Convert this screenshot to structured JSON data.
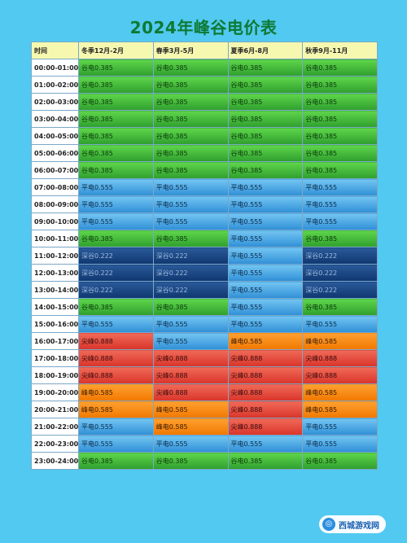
{
  "title": "2024年峰谷电价表",
  "headers": [
    "时间",
    "冬季12月-2月",
    "春季3月-5月",
    "夏季6月-8月",
    "秋季9月-11月"
  ],
  "rows": [
    {
      "time": "00:00-01:00",
      "cells": [
        {
          "text": "谷电0.385",
          "type": "valley"
        },
        {
          "text": "谷电0.385",
          "type": "valley"
        },
        {
          "text": "谷电0.385",
          "type": "valley"
        },
        {
          "text": "谷电0.385",
          "type": "valley"
        }
      ]
    },
    {
      "time": "01:00-02:00",
      "cells": [
        {
          "text": "谷电0.385",
          "type": "valley"
        },
        {
          "text": "谷电0.385",
          "type": "valley"
        },
        {
          "text": "谷电0.385",
          "type": "valley"
        },
        {
          "text": "谷电0.385",
          "type": "valley"
        }
      ]
    },
    {
      "time": "02:00-03:00",
      "cells": [
        {
          "text": "谷电0.385",
          "type": "valley"
        },
        {
          "text": "谷电0.385",
          "type": "valley"
        },
        {
          "text": "谷电0.385",
          "type": "valley"
        },
        {
          "text": "谷电0.385",
          "type": "valley"
        }
      ]
    },
    {
      "time": "03:00-04:00",
      "cells": [
        {
          "text": "谷电0.385",
          "type": "valley"
        },
        {
          "text": "谷电0.385",
          "type": "valley"
        },
        {
          "text": "谷电0.385",
          "type": "valley"
        },
        {
          "text": "谷电0.385",
          "type": "valley"
        }
      ]
    },
    {
      "time": "04:00-05:00",
      "cells": [
        {
          "text": "谷电0.385",
          "type": "valley"
        },
        {
          "text": "谷电0.385",
          "type": "valley"
        },
        {
          "text": "谷电0.385",
          "type": "valley"
        },
        {
          "text": "谷电0.385",
          "type": "valley"
        }
      ]
    },
    {
      "time": "05:00-06:00",
      "cells": [
        {
          "text": "谷电0.385",
          "type": "valley"
        },
        {
          "text": "谷电0.385",
          "type": "valley"
        },
        {
          "text": "谷电0.385",
          "type": "valley"
        },
        {
          "text": "谷电0.385",
          "type": "valley"
        }
      ]
    },
    {
      "time": "06:00-07:00",
      "cells": [
        {
          "text": "谷电0.385",
          "type": "valley"
        },
        {
          "text": "谷电0.385",
          "type": "valley"
        },
        {
          "text": "谷电0.385",
          "type": "valley"
        },
        {
          "text": "谷电0.385",
          "type": "valley"
        }
      ]
    },
    {
      "time": "07:00-08:00",
      "cells": [
        {
          "text": "平电0.555",
          "type": "flat"
        },
        {
          "text": "平电0.555",
          "type": "flat"
        },
        {
          "text": "平电0.555",
          "type": "flat"
        },
        {
          "text": "平电0.555",
          "type": "flat"
        }
      ]
    },
    {
      "time": "08:00-09:00",
      "cells": [
        {
          "text": "平电0.555",
          "type": "flat"
        },
        {
          "text": "平电0.555",
          "type": "flat"
        },
        {
          "text": "平电0.555",
          "type": "flat"
        },
        {
          "text": "平电0.555",
          "type": "flat"
        }
      ]
    },
    {
      "time": "09:00-10:00",
      "cells": [
        {
          "text": "平电0.555",
          "type": "flat"
        },
        {
          "text": "平电0.555",
          "type": "flat"
        },
        {
          "text": "平电0.555",
          "type": "flat"
        },
        {
          "text": "平电0.555",
          "type": "flat"
        }
      ]
    },
    {
      "time": "10:00-11:00",
      "cells": [
        {
          "text": "谷电0.385",
          "type": "valley"
        },
        {
          "text": "谷电0.385",
          "type": "valley"
        },
        {
          "text": "平电0.555",
          "type": "flat"
        },
        {
          "text": "谷电0.385",
          "type": "valley"
        }
      ]
    },
    {
      "time": "11:00-12:00",
      "cells": [
        {
          "text": "深谷0.222",
          "type": "deep"
        },
        {
          "text": "深谷0.222",
          "type": "deep"
        },
        {
          "text": "平电0.555",
          "type": "flat"
        },
        {
          "text": "深谷0.222",
          "type": "deep"
        }
      ]
    },
    {
      "time": "12:00-13:00",
      "cells": [
        {
          "text": "深谷0.222",
          "type": "deep"
        },
        {
          "text": "深谷0.222",
          "type": "deep"
        },
        {
          "text": "平电0.555",
          "type": "flat"
        },
        {
          "text": "深谷0.222",
          "type": "deep"
        }
      ]
    },
    {
      "time": "13:00-14:00",
      "cells": [
        {
          "text": "深谷0.222",
          "type": "deep"
        },
        {
          "text": "深谷0.222",
          "type": "deep"
        },
        {
          "text": "平电0.555",
          "type": "flat"
        },
        {
          "text": "深谷0.222",
          "type": "deep"
        }
      ]
    },
    {
      "time": "14:00-15:00",
      "cells": [
        {
          "text": "谷电0.385",
          "type": "valley"
        },
        {
          "text": "谷电0.385",
          "type": "valley"
        },
        {
          "text": "平电0.555",
          "type": "flat"
        },
        {
          "text": "谷电0.385",
          "type": "valley"
        }
      ]
    },
    {
      "time": "15:00-16:00",
      "cells": [
        {
          "text": "平电0.555",
          "type": "flat"
        },
        {
          "text": "平电0.555",
          "type": "flat"
        },
        {
          "text": "平电0.555",
          "type": "flat"
        },
        {
          "text": "平电0.555",
          "type": "flat"
        }
      ]
    },
    {
      "time": "16:00-17:00",
      "cells": [
        {
          "text": "尖峰0.888",
          "type": "sharp"
        },
        {
          "text": "平电0.555",
          "type": "flat"
        },
        {
          "text": "峰电0.585",
          "type": "peak"
        },
        {
          "text": "峰电0.585",
          "type": "peak"
        }
      ]
    },
    {
      "time": "17:00-18:00",
      "cells": [
        {
          "text": "尖峰0.888",
          "type": "sharp"
        },
        {
          "text": "尖峰0.888",
          "type": "sharp"
        },
        {
          "text": "尖峰0.888",
          "type": "sharp"
        },
        {
          "text": "尖峰0.888",
          "type": "sharp"
        }
      ]
    },
    {
      "time": "18:00-19:00",
      "cells": [
        {
          "text": "尖峰0.888",
          "type": "sharp"
        },
        {
          "text": "尖峰0.888",
          "type": "sharp"
        },
        {
          "text": "尖峰0.888",
          "type": "sharp"
        },
        {
          "text": "尖峰0.888",
          "type": "sharp"
        }
      ]
    },
    {
      "time": "19:00-20:00",
      "cells": [
        {
          "text": "峰电0.585",
          "type": "peak"
        },
        {
          "text": "尖峰0.888",
          "type": "sharp"
        },
        {
          "text": "尖峰0.888",
          "type": "sharp"
        },
        {
          "text": "峰电0.585",
          "type": "peak"
        }
      ]
    },
    {
      "time": "20:00-21:00",
      "cells": [
        {
          "text": "峰电0.585",
          "type": "peak"
        },
        {
          "text": "峰电0.585",
          "type": "peak"
        },
        {
          "text": "尖峰0.888",
          "type": "sharp"
        },
        {
          "text": "峰电0.585",
          "type": "peak"
        }
      ]
    },
    {
      "time": "21:00-22:00",
      "cells": [
        {
          "text": "平电0.555",
          "type": "flat"
        },
        {
          "text": "峰电0.585",
          "type": "peak"
        },
        {
          "text": "尖峰0.888",
          "type": "sharp"
        },
        {
          "text": "平电0.555",
          "type": "flat"
        }
      ]
    },
    {
      "time": "22:00-23:00",
      "cells": [
        {
          "text": "平电0.555",
          "type": "flat"
        },
        {
          "text": "平电0.555",
          "type": "flat"
        },
        {
          "text": "平电0.555",
          "type": "flat"
        },
        {
          "text": "平电0.555",
          "type": "flat"
        }
      ]
    },
    {
      "time": "23:00-24:00",
      "cells": [
        {
          "text": "谷电0.385",
          "type": "valley"
        },
        {
          "text": "谷电0.385",
          "type": "valley"
        },
        {
          "text": "谷电0.385",
          "type": "valley"
        },
        {
          "text": "谷电0.385",
          "type": "valley"
        }
      ]
    }
  ],
  "colors": {
    "valley": "#3fb83a",
    "flat": "#3aa0e0",
    "deep": "#123f7a",
    "peak": "#f58410",
    "sharp": "#e24535",
    "title": "#0d7a33",
    "background": "#52c9f0"
  },
  "watermark": {
    "text": "西城游戏网",
    "icon": "globe-icon"
  }
}
